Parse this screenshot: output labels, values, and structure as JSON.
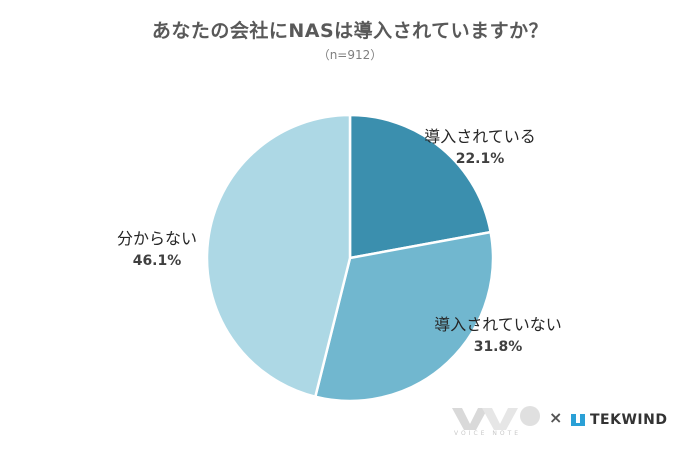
{
  "chart_data": {
    "type": "pie",
    "title": "あなたの会社にNASは導入されていますか？",
    "subtitle": "（n=912）",
    "slices": [
      {
        "label": "導入されている",
        "value": 22.1,
        "value_label": "22.1%",
        "color": "#3b8fae"
      },
      {
        "label": "導入されていない",
        "value": 31.8,
        "value_label": "31.8%",
        "color": "#71b7cf"
      },
      {
        "label": "分からない",
        "value": 46.1,
        "value_label": "46.1%",
        "color": "#add8e5"
      }
    ],
    "start_angle": "12 o'clock",
    "direction": "clockwise"
  },
  "footer": {
    "logo_left_text": "VOICE NOTE",
    "separator": "×",
    "logo_right_text": "TEKWIND"
  }
}
